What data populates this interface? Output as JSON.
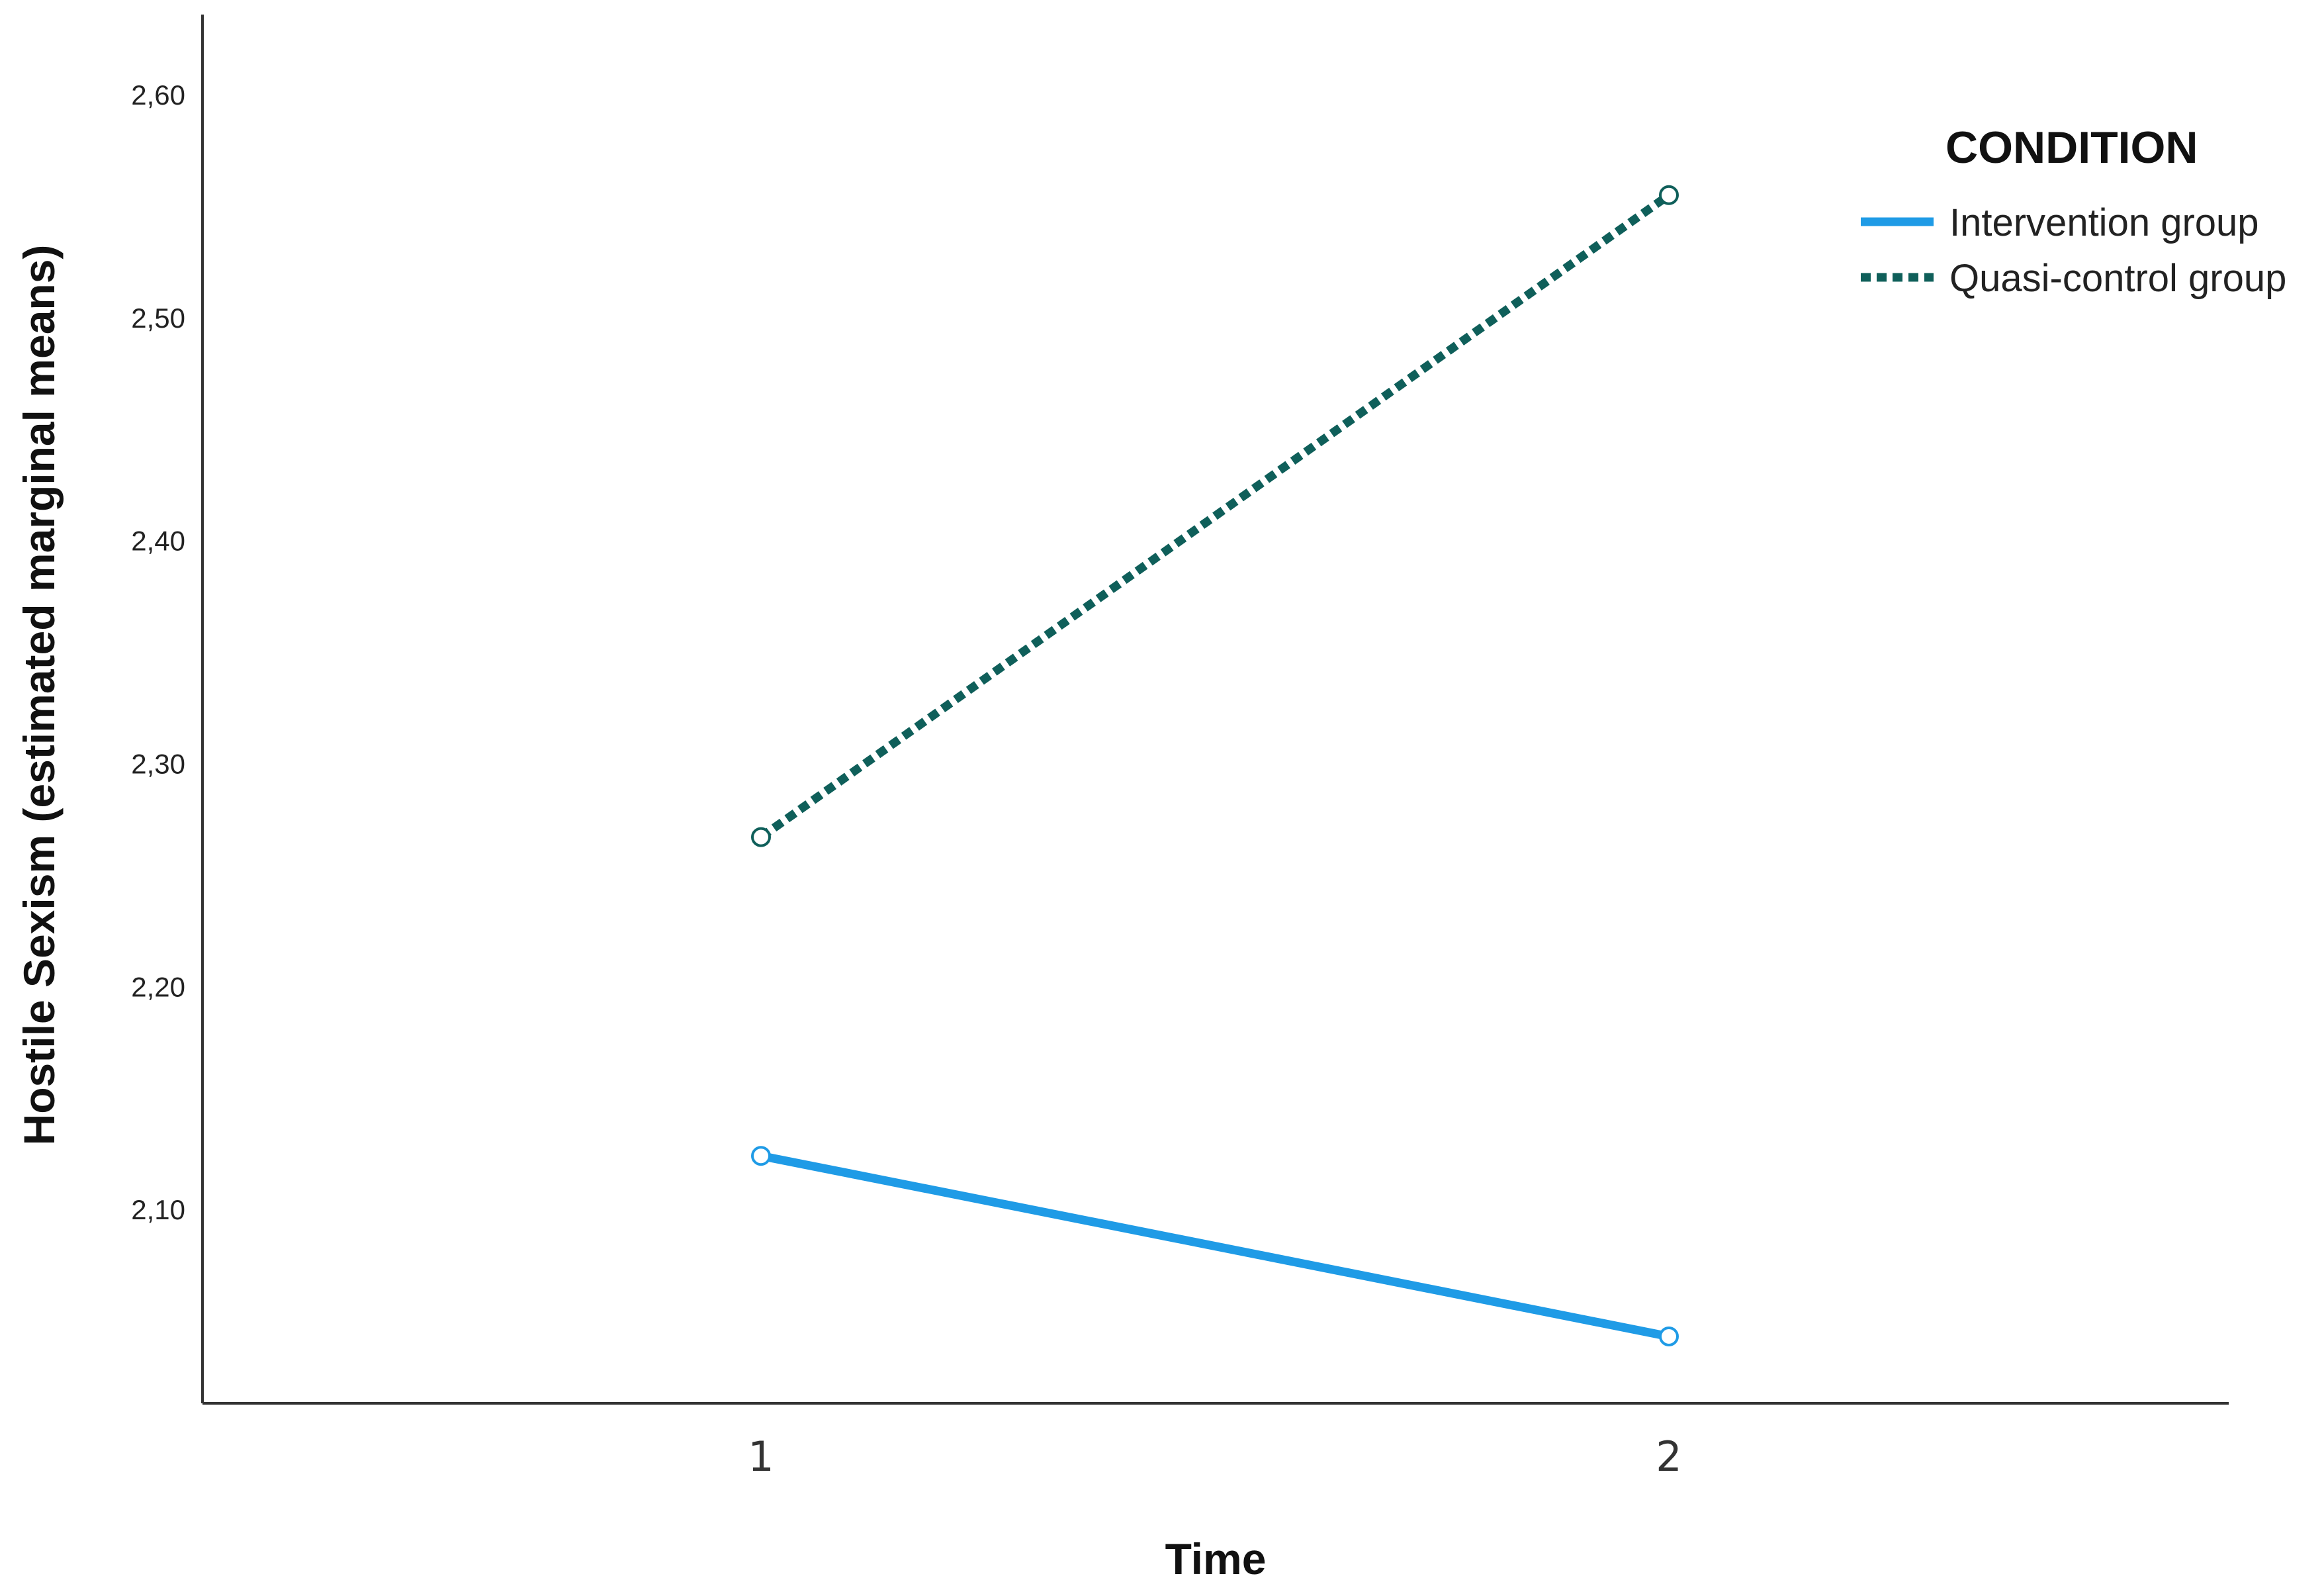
{
  "chart_data": {
    "type": "line",
    "title": "",
    "xlabel": "Time",
    "ylabel": "Hostile Sexism (estimated marginal means)",
    "categories": [
      "1",
      "2"
    ],
    "ylim": [
      2.013,
      2.636
    ],
    "yticks": [
      "2,10",
      "2,20",
      "2,30",
      "2,40",
      "2,50",
      "2,60"
    ],
    "ytick_values": [
      2.1,
      2.2,
      2.3,
      2.4,
      2.5,
      2.6
    ],
    "grid": false,
    "legend": {
      "title": "CONDITION",
      "position": "top-right"
    },
    "series": [
      {
        "name": "Intervention group",
        "values": [
          2.124,
          2.043
        ],
        "color": "#1f9be6",
        "style": "solid",
        "marker": "open-circle"
      },
      {
        "name": "Quasi-control group",
        "values": [
          2.267,
          2.555
        ],
        "color": "#0f5f5a",
        "style": "dotted",
        "marker": "open-circle"
      }
    ]
  }
}
